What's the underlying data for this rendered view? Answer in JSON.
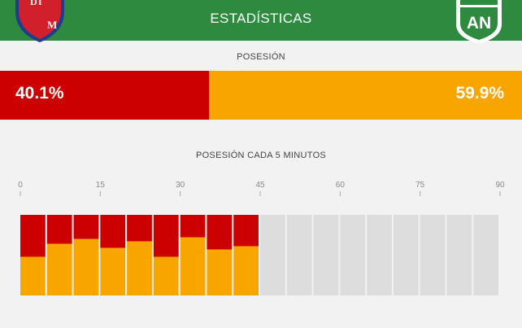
{
  "header": {
    "title": "ESTADÍSTICAS",
    "home_logo_letters": [
      "D",
      "I",
      "M"
    ],
    "away_logo_letters": "AN"
  },
  "possession": {
    "title": "POSESIÓN",
    "home_label": "40.1%",
    "away_label": "59.9%",
    "home_value": 40.1,
    "away_value": 59.9
  },
  "colors": {
    "header_bg": "#2d8a3e",
    "home": "#cc0000",
    "away": "#f8a500",
    "empty_segment": "#dddddd",
    "page_bg": "#f2f2f2"
  },
  "chart_data": {
    "type": "bar",
    "title": "POSESIÓN CADA 5 MINUTOS",
    "x_ticks": [
      "0",
      "15",
      "30",
      "45",
      "60",
      "75",
      "90"
    ],
    "xlim": [
      0,
      90
    ],
    "ylim": [
      0,
      100
    ],
    "stacked": true,
    "categories": [
      "0-5",
      "5-10",
      "10-15",
      "15-20",
      "20-25",
      "25-30",
      "30-35",
      "35-40",
      "40-45",
      "45-50",
      "50-55",
      "55-60",
      "60-65",
      "65-70",
      "70-75",
      "75-80",
      "80-85",
      "85-90"
    ],
    "series": [
      {
        "color": "#cc0000",
        "values": [
          52,
          36,
          30,
          41,
          33,
          52,
          28,
          43,
          39,
          null,
          null,
          null,
          null,
          null,
          null,
          null,
          null,
          null
        ]
      },
      {
        "color": "#f8a500",
        "values": [
          48,
          64,
          70,
          59,
          67,
          48,
          72,
          57,
          61,
          null,
          null,
          null,
          null,
          null,
          null,
          null,
          null,
          null
        ]
      }
    ]
  }
}
